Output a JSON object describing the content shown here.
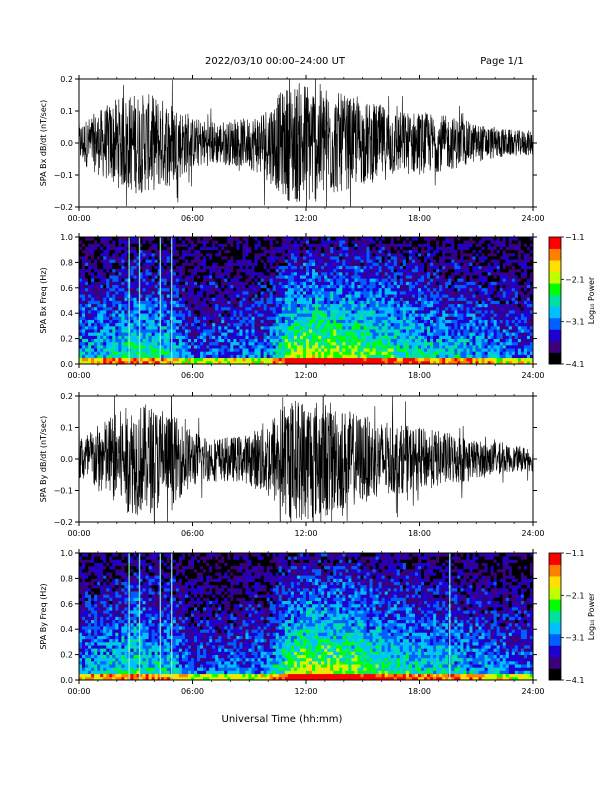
{
  "header": {
    "title": "2022/03/10  00:00–24:00 UT",
    "page": "Page 1/1"
  },
  "chart_data": [
    {
      "type": "line",
      "ylabel": "SPA Bx dB/dt (nT/sec)",
      "xlim": [
        0,
        24
      ],
      "ylim": [
        -0.2,
        0.2
      ],
      "xticks": [
        "00:00",
        "06:00",
        "12:00",
        "18:00",
        "24:00"
      ],
      "yticks": [
        "−0.2",
        "−0.1",
        "0.0",
        "0.1",
        "0.2"
      ],
      "amplitude_envelope": {
        "hours": [
          0,
          1,
          2,
          3,
          4,
          5,
          6,
          7,
          8,
          9,
          10,
          11,
          12,
          13,
          14,
          15,
          16,
          17,
          18,
          19,
          20,
          21,
          22,
          23,
          24
        ],
        "values": [
          0.06,
          0.1,
          0.14,
          0.16,
          0.15,
          0.13,
          0.08,
          0.07,
          0.07,
          0.08,
          0.12,
          0.18,
          0.2,
          0.18,
          0.15,
          0.13,
          0.12,
          0.1,
          0.1,
          0.09,
          0.08,
          0.06,
          0.05,
          0.04,
          0.04
        ]
      }
    },
    {
      "type": "heatmap",
      "ylabel": "SPA Bx Freq (Hz)",
      "xlim": [
        0,
        24
      ],
      "ylim": [
        0,
        1
      ],
      "xticks": [
        "00:00",
        "06:00",
        "12:00",
        "18:00",
        "24:00"
      ],
      "yticks": [
        "0.0",
        "0.2",
        "0.4",
        "0.6",
        "0.8",
        "1.0"
      ],
      "colorbar": {
        "label": "Log₁₀ Power",
        "range": [
          -4.1,
          -1.1
        ],
        "ticks": [
          "−1.1",
          "−2.1",
          "−3.1",
          "−4.1"
        ]
      },
      "colors": [
        "#000000",
        "#3b007a",
        "#2000d0",
        "#0060ff",
        "#00c0ff",
        "#00e0a0",
        "#00ff00",
        "#c0ff00",
        "#ffe000",
        "#ff8000",
        "#ff0000"
      ],
      "intensity_profile": {
        "hours": [
          0,
          2,
          3,
          5,
          6,
          10,
          11,
          12,
          14,
          15,
          16,
          18,
          20,
          24
        ],
        "values": [
          0.45,
          0.55,
          0.6,
          0.5,
          0.35,
          0.4,
          0.7,
          0.8,
          0.75,
          0.7,
          0.65,
          0.55,
          0.5,
          0.35
        ]
      },
      "spectral_lines": [
        2.65,
        3.2,
        4.3,
        4.9
      ]
    },
    {
      "type": "line",
      "ylabel": "SPA By dB/dt (nT/sec)",
      "xlim": [
        0,
        24
      ],
      "ylim": [
        -0.2,
        0.2
      ],
      "xticks": [
        "00:00",
        "06:00",
        "12:00",
        "18:00",
        "24:00"
      ],
      "yticks": [
        "−0.2",
        "−0.1",
        "0.0",
        "0.1",
        "0.2"
      ],
      "amplitude_envelope": {
        "hours": [
          0,
          1,
          2,
          3,
          4,
          5,
          6,
          7,
          8,
          9,
          10,
          11,
          12,
          13,
          14,
          15,
          16,
          17,
          18,
          19,
          20,
          21,
          22,
          23,
          24
        ],
        "values": [
          0.07,
          0.11,
          0.15,
          0.18,
          0.17,
          0.14,
          0.09,
          0.07,
          0.07,
          0.08,
          0.13,
          0.19,
          0.2,
          0.19,
          0.16,
          0.14,
          0.12,
          0.11,
          0.1,
          0.09,
          0.08,
          0.06,
          0.05,
          0.04,
          0.04
        ]
      }
    },
    {
      "type": "heatmap",
      "ylabel": "SPA By Freq (Hz)",
      "xlim": [
        0,
        24
      ],
      "ylim": [
        0,
        1
      ],
      "xticks": [
        "00:00",
        "06:00",
        "12:00",
        "18:00",
        "24:00"
      ],
      "yticks": [
        "0.0",
        "0.2",
        "0.4",
        "0.6",
        "0.8",
        "1.0"
      ],
      "colorbar": {
        "label": "Log₁₀ Power",
        "range": [
          -4.1,
          -1.1
        ],
        "ticks": [
          "−1.1",
          "−2.1",
          "−3.1",
          "−4.1"
        ]
      },
      "colors": [
        "#000000",
        "#3b007a",
        "#2000d0",
        "#0060ff",
        "#00c0ff",
        "#00e0a0",
        "#00ff00",
        "#c0ff00",
        "#ffe000",
        "#ff8000",
        "#ff0000"
      ],
      "intensity_profile": {
        "hours": [
          0,
          2,
          3,
          5,
          6,
          10,
          11,
          12,
          14,
          15,
          16,
          18,
          20,
          24
        ],
        "values": [
          0.45,
          0.55,
          0.6,
          0.5,
          0.35,
          0.4,
          0.7,
          0.8,
          0.75,
          0.7,
          0.65,
          0.55,
          0.5,
          0.35
        ]
      },
      "spectral_lines": [
        2.65,
        3.2,
        4.3,
        4.9,
        19.6
      ]
    }
  ],
  "xlabel": "Universal Time (hh:mm)"
}
